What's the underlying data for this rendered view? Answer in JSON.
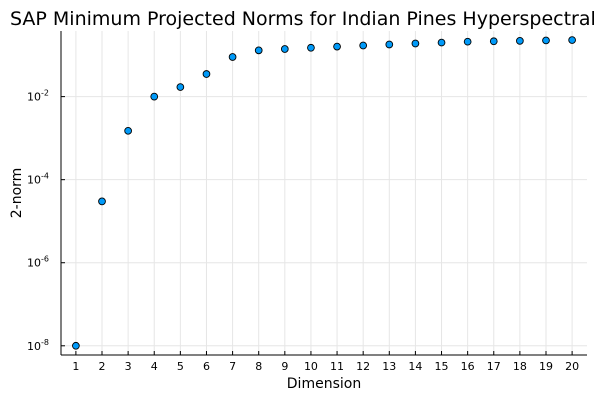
{
  "chart_data": {
    "type": "scatter",
    "title": "SAP Minimum Projected Norms for Indian Pines Hyperspectral D",
    "xlabel": "Dimension",
    "ylabel": "2-norm",
    "x": [
      1,
      2,
      3,
      4,
      5,
      6,
      7,
      8,
      9,
      10,
      11,
      12,
      13,
      14,
      15,
      16,
      17,
      18,
      19,
      20
    ],
    "y": [
      1e-08,
      3e-05,
      0.0015,
      0.01,
      0.017,
      0.035,
      0.09,
      0.13,
      0.14,
      0.15,
      0.16,
      0.17,
      0.18,
      0.19,
      0.2,
      0.21,
      0.215,
      0.22,
      0.225,
      0.23
    ],
    "xticks": [
      "1",
      "2",
      "3",
      "4",
      "5",
      "6",
      "7",
      "8",
      "9",
      "10",
      "11",
      "12",
      "13",
      "14",
      "15",
      "16",
      "17",
      "18",
      "19",
      "20"
    ],
    "yticks": [
      {
        "base": "10",
        "exp": "-8",
        "value": 1e-08
      },
      {
        "base": "10",
        "exp": "-6",
        "value": 1e-06
      },
      {
        "base": "10",
        "exp": "-4",
        "value": 0.0001
      },
      {
        "base": "10",
        "exp": "-2",
        "value": 0.01
      }
    ],
    "xlim": [
      0.43,
      20.57
    ],
    "ylim": [
      6e-09,
      0.38
    ],
    "yscale": "log",
    "grid": true,
    "legend": "none",
    "marker_color": "#009af9"
  }
}
